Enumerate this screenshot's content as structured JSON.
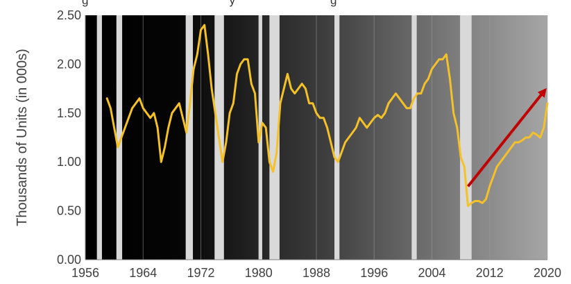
{
  "chart_data": {
    "type": "line",
    "title_fragment": "g                                           y                             g",
    "xlabel": "",
    "ylabel": "Thousands of Units (in 000s)",
    "xlim": [
      1956,
      2020
    ],
    "ylim": [
      0,
      2.5
    ],
    "x_ticks": [
      "1956",
      "1964",
      "1972",
      "1980",
      "1988",
      "1996",
      "2004",
      "2012",
      "2020"
    ],
    "y_ticks": [
      "0.00",
      "0.50",
      "1.00",
      "1.50",
      "2.00",
      "2.50"
    ],
    "grid": true,
    "background": "black-to-gray horizontal gradient",
    "band_color": "#d9d9d9",
    "recession_bands": [
      [
        1957.6,
        1958.3
      ],
      [
        1960.3,
        1961.1
      ],
      [
        1969.9,
        1970.9
      ],
      [
        1973.9,
        1975.2
      ],
      [
        1980.0,
        1980.5
      ],
      [
        1981.5,
        1982.9
      ],
      [
        1990.5,
        1991.2
      ],
      [
        2001.2,
        2001.9
      ],
      [
        2007.9,
        2009.5
      ]
    ],
    "series": [
      {
        "color": "#f5c129",
        "x": [
          1959.0,
          1959.5,
          1960.0,
          1960.5,
          1961.0,
          1961.5,
          1962.0,
          1962.5,
          1963.0,
          1963.5,
          1964.0,
          1964.5,
          1965.0,
          1965.5,
          1966.0,
          1966.5,
          1967.0,
          1967.5,
          1968.0,
          1968.5,
          1969.0,
          1969.5,
          1970.0,
          1970.5,
          1971.0,
          1971.5,
          1972.0,
          1972.5,
          1973.0,
          1973.5,
          1974.0,
          1974.5,
          1975.0,
          1975.5,
          1976.0,
          1976.5,
          1977.0,
          1977.5,
          1978.0,
          1978.5,
          1979.0,
          1979.5,
          1980.0,
          1980.5,
          1981.0,
          1981.5,
          1982.0,
          1982.5,
          1983.0,
          1983.5,
          1984.0,
          1984.5,
          1985.0,
          1985.5,
          1986.0,
          1986.5,
          1987.0,
          1987.5,
          1988.0,
          1988.5,
          1989.0,
          1989.5,
          1990.0,
          1990.5,
          1991.0,
          1991.5,
          1992.0,
          1992.5,
          1993.0,
          1993.5,
          1994.0,
          1994.5,
          1995.0,
          1995.5,
          1996.0,
          1996.5,
          1997.0,
          1997.5,
          1998.0,
          1998.5,
          1999.0,
          1999.5,
          2000.0,
          2000.5,
          2001.0,
          2001.5,
          2002.0,
          2002.5,
          2003.0,
          2003.5,
          2004.0,
          2004.5,
          2005.0,
          2005.5,
          2006.0,
          2006.5,
          2007.0,
          2007.5,
          2008.0,
          2008.5,
          2009.0,
          2009.5,
          2010.0,
          2010.5,
          2011.0,
          2011.5,
          2012.0,
          2012.5,
          2013.0,
          2013.5,
          2014.0,
          2014.5,
          2015.0,
          2015.5,
          2016.0,
          2016.5,
          2017.0,
          2017.5,
          2018.0,
          2018.5,
          2019.0,
          2019.5,
          2020.0
        ],
        "y": [
          1.65,
          1.55,
          1.35,
          1.15,
          1.25,
          1.35,
          1.45,
          1.55,
          1.6,
          1.65,
          1.55,
          1.5,
          1.45,
          1.5,
          1.35,
          1.0,
          1.15,
          1.35,
          1.5,
          1.55,
          1.6,
          1.45,
          1.3,
          1.6,
          1.95,
          2.1,
          2.35,
          2.4,
          2.1,
          1.75,
          1.5,
          1.25,
          1.0,
          1.2,
          1.5,
          1.6,
          1.9,
          2.0,
          2.05,
          2.05,
          1.8,
          1.7,
          1.2,
          1.4,
          1.35,
          1.0,
          0.9,
          1.1,
          1.6,
          1.75,
          1.9,
          1.75,
          1.7,
          1.75,
          1.8,
          1.75,
          1.6,
          1.6,
          1.5,
          1.45,
          1.45,
          1.35,
          1.2,
          1.05,
          1.0,
          1.1,
          1.2,
          1.25,
          1.3,
          1.35,
          1.45,
          1.4,
          1.35,
          1.4,
          1.45,
          1.48,
          1.45,
          1.5,
          1.6,
          1.65,
          1.7,
          1.65,
          1.6,
          1.55,
          1.55,
          1.65,
          1.7,
          1.7,
          1.8,
          1.85,
          1.95,
          2.0,
          2.05,
          2.05,
          2.1,
          1.85,
          1.5,
          1.35,
          1.05,
          0.95,
          0.55,
          0.58,
          0.6,
          0.6,
          0.58,
          0.62,
          0.75,
          0.85,
          0.95,
          1.0,
          1.05,
          1.1,
          1.15,
          1.2,
          1.2,
          1.22,
          1.25,
          1.25,
          1.3,
          1.28,
          1.25,
          1.35,
          1.6
        ]
      }
    ],
    "annotations": [
      {
        "type": "arrow",
        "color": "#c00000",
        "from": [
          2009.0,
          0.75
        ],
        "to": [
          2019.5,
          1.72
        ]
      }
    ]
  }
}
